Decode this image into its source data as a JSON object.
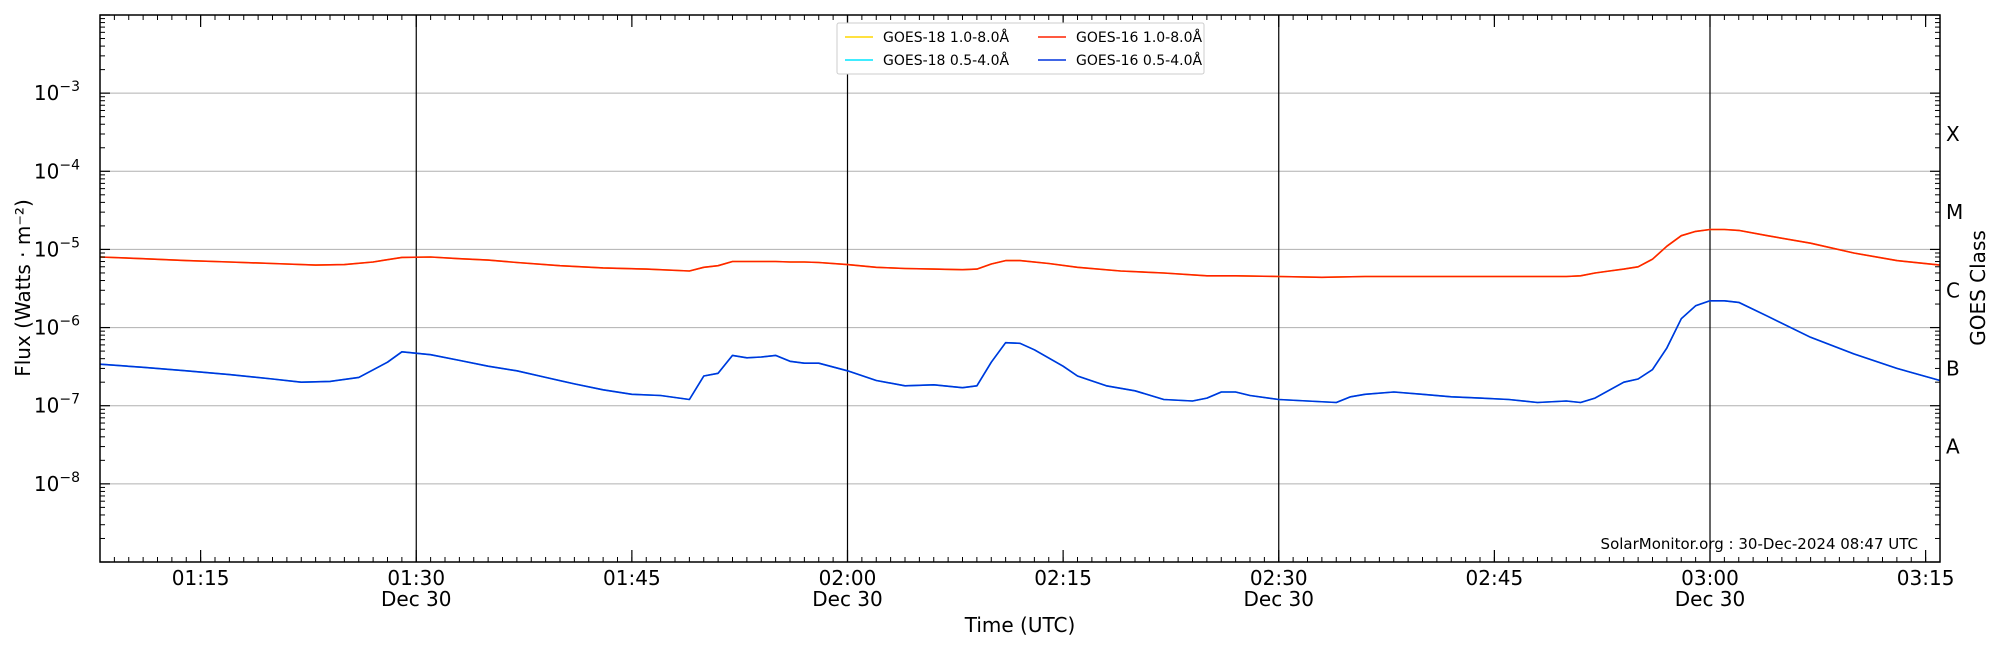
{
  "chart_data": {
    "type": "line",
    "title": "",
    "xlabel": "Time (UTC)",
    "ylabel": "Flux (Watts · m⁻²)",
    "y2label": "GOES Class",
    "yscale": "log",
    "ylim": [
      1e-09,
      0.01
    ],
    "xlim": [
      "01:08",
      "03:16"
    ],
    "grid": "horizontal at decades; vertical at half-hours",
    "legend_position": "top-center",
    "credit": "SolarMonitor.org : 30-Dec-2024 08:47 UTC",
    "x_ticks": [
      {
        "time": "01:15",
        "label": "01:15",
        "date": ""
      },
      {
        "time": "01:30",
        "label": "01:30",
        "date": "Dec 30"
      },
      {
        "time": "01:45",
        "label": "01:45",
        "date": ""
      },
      {
        "time": "02:00",
        "label": "02:00",
        "date": "Dec 30"
      },
      {
        "time": "02:15",
        "label": "02:15",
        "date": ""
      },
      {
        "time": "02:30",
        "label": "02:30",
        "date": "Dec 30"
      },
      {
        "time": "02:45",
        "label": "02:45",
        "date": ""
      },
      {
        "time": "03:00",
        "label": "03:00",
        "date": "Dec 30"
      },
      {
        "time": "03:15",
        "label": "03:15",
        "date": ""
      }
    ],
    "y_ticks": [
      {
        "value": 1e-08,
        "mantissa": "10",
        "exponent": "−8"
      },
      {
        "value": 1e-07,
        "mantissa": "10",
        "exponent": "−7"
      },
      {
        "value": 1e-06,
        "mantissa": "10",
        "exponent": "−6"
      },
      {
        "value": 1e-05,
        "mantissa": "10",
        "exponent": "−5"
      },
      {
        "value": 0.0001,
        "mantissa": "10",
        "exponent": "−4"
      },
      {
        "value": 0.001,
        "mantissa": "10",
        "exponent": "−3"
      }
    ],
    "goes_classes": [
      {
        "label": "X",
        "value": 0.0003
      },
      {
        "label": "M",
        "value": 3e-05
      },
      {
        "label": "C",
        "value": 3e-06
      },
      {
        "label": "B",
        "value": 3e-07
      },
      {
        "label": "A",
        "value": 3e-08
      }
    ],
    "series": [
      {
        "name": "GOES-18 1.0-8.0Å",
        "color": "#ffd700",
        "x": [
          "01:08",
          "01:11",
          "01:14",
          "01:17",
          "01:20",
          "01:23",
          "01:25",
          "01:27",
          "01:29",
          "01:31",
          "01:33",
          "01:35",
          "01:37",
          "01:40",
          "01:43",
          "01:46",
          "01:49",
          "01:50",
          "01:51",
          "01:52",
          "01:53",
          "01:54",
          "01:55",
          "01:56",
          "01:57",
          "01:58",
          "02:00",
          "02:02",
          "02:04",
          "02:06",
          "02:08",
          "02:09",
          "02:10",
          "02:11",
          "02:12",
          "02:14",
          "02:16",
          "02:19",
          "02:22",
          "02:25",
          "02:26",
          "02:27",
          "02:30",
          "02:33",
          "02:36",
          "02:39",
          "02:42",
          "02:45",
          "02:48",
          "02:50",
          "02:51",
          "02:52",
          "02:53",
          "02:54",
          "02:55",
          "02:56",
          "02:57",
          "02:58",
          "02:59",
          "03:00",
          "03:01",
          "03:02",
          "03:04",
          "03:07",
          "03:10",
          "03:13",
          "03:16"
        ],
        "values": [
          8e-06,
          7.6e-06,
          7.2e-06,
          6.9e-06,
          6.6e-06,
          6.3e-06,
          6.4e-06,
          6.9e-06,
          7.9e-06,
          8e-06,
          7.6e-06,
          7.3e-06,
          6.8e-06,
          6.2e-06,
          5.8e-06,
          5.6e-06,
          5.3e-06,
          5.9e-06,
          6.2e-06,
          7e-06,
          7e-06,
          7e-06,
          7e-06,
          6.9e-06,
          6.9e-06,
          6.8e-06,
          6.4e-06,
          5.9e-06,
          5.7e-06,
          5.6e-06,
          5.5e-06,
          5.6e-06,
          6.5e-06,
          7.2e-06,
          7.2e-06,
          6.6e-06,
          5.9e-06,
          5.3e-06,
          5e-06,
          4.6e-06,
          4.6e-06,
          4.6e-06,
          4.5e-06,
          4.4e-06,
          4.5e-06,
          4.5e-06,
          4.5e-06,
          4.5e-06,
          4.5e-06,
          4.5e-06,
          4.6e-06,
          5e-06,
          5.3e-06,
          5.6e-06,
          6e-06,
          7.5e-06,
          1.1e-05,
          1.5e-05,
          1.7e-05,
          1.8e-05,
          1.8e-05,
          1.75e-05,
          1.5e-05,
          1.2e-05,
          9e-06,
          7.2e-06,
          6.3e-06
        ]
      },
      {
        "name": "GOES-18 0.5-4.0Å",
        "color": "#00e5ff",
        "x": [
          "01:08",
          "01:11",
          "01:14",
          "01:17",
          "01:20",
          "01:22",
          "01:24",
          "01:26",
          "01:28",
          "01:29",
          "01:31",
          "01:33",
          "01:35",
          "01:37",
          "01:39",
          "01:41",
          "01:43",
          "01:45",
          "01:47",
          "01:49",
          "01:50",
          "01:51",
          "01:52",
          "01:53",
          "01:54",
          "01:55",
          "01:56",
          "01:57",
          "01:58",
          "02:00",
          "02:02",
          "02:04",
          "02:06",
          "02:08",
          "02:09",
          "02:10",
          "02:11",
          "02:12",
          "02:13",
          "02:15",
          "02:16",
          "02:18",
          "02:20",
          "02:22",
          "02:24",
          "02:25",
          "02:26",
          "02:27",
          "02:28",
          "02:30",
          "02:32",
          "02:34",
          "02:35",
          "02:36",
          "02:38",
          "02:40",
          "02:42",
          "02:44",
          "02:46",
          "02:48",
          "02:50",
          "02:51",
          "02:52",
          "02:54",
          "02:55",
          "02:56",
          "02:57",
          "02:58",
          "02:59",
          "03:00",
          "03:01",
          "03:02",
          "03:04",
          "03:07",
          "03:10",
          "03:13",
          "03:16"
        ],
        "values": [
          3.4e-07,
          3.1e-07,
          2.8e-07,
          2.5e-07,
          2.2e-07,
          2e-07,
          2.05e-07,
          2.3e-07,
          3.6e-07,
          4.9e-07,
          4.5e-07,
          3.8e-07,
          3.2e-07,
          2.8e-07,
          2.3e-07,
          1.9e-07,
          1.6e-07,
          1.4e-07,
          1.35e-07,
          1.2e-07,
          2.4e-07,
          2.6e-07,
          4.4e-07,
          4.1e-07,
          4.2e-07,
          4.4e-07,
          3.7e-07,
          3.5e-07,
          3.5e-07,
          2.8e-07,
          2.1e-07,
          1.8e-07,
          1.85e-07,
          1.7e-07,
          1.8e-07,
          3.6e-07,
          6.4e-07,
          6.3e-07,
          5.2e-07,
          3.2e-07,
          2.4e-07,
          1.8e-07,
          1.55e-07,
          1.2e-07,
          1.15e-07,
          1.25e-07,
          1.5e-07,
          1.5e-07,
          1.35e-07,
          1.2e-07,
          1.15e-07,
          1.1e-07,
          1.3e-07,
          1.4e-07,
          1.5e-07,
          1.4e-07,
          1.3e-07,
          1.25e-07,
          1.2e-07,
          1.1e-07,
          1.15e-07,
          1.1e-07,
          1.25e-07,
          2e-07,
          2.2e-07,
          2.9e-07,
          5.5e-07,
          1.3e-06,
          1.9e-06,
          2.2e-06,
          2.2e-06,
          2.1e-06,
          1.4e-06,
          7.5e-07,
          4.6e-07,
          3e-07,
          2.1e-07
        ]
      },
      {
        "name": "GOES-16 1.0-8.0Å",
        "color": "#ff2200",
        "x": [
          "01:08",
          "01:11",
          "01:14",
          "01:17",
          "01:20",
          "01:23",
          "01:25",
          "01:27",
          "01:29",
          "01:31",
          "01:33",
          "01:35",
          "01:37",
          "01:40",
          "01:43",
          "01:46",
          "01:49",
          "01:50",
          "01:51",
          "01:52",
          "01:53",
          "01:54",
          "01:55",
          "01:56",
          "01:57",
          "01:58",
          "02:00",
          "02:02",
          "02:04",
          "02:06",
          "02:08",
          "02:09",
          "02:10",
          "02:11",
          "02:12",
          "02:14",
          "02:16",
          "02:19",
          "02:22",
          "02:25",
          "02:26",
          "02:27",
          "02:30",
          "02:33",
          "02:36",
          "02:39",
          "02:42",
          "02:45",
          "02:48",
          "02:50",
          "02:51",
          "02:52",
          "02:53",
          "02:54",
          "02:55",
          "02:56",
          "02:57",
          "02:58",
          "02:59",
          "03:00",
          "03:01",
          "03:02",
          "03:04",
          "03:07",
          "03:10",
          "03:13",
          "03:16"
        ],
        "values": [
          8e-06,
          7.6e-06,
          7.2e-06,
          6.9e-06,
          6.6e-06,
          6.3e-06,
          6.4e-06,
          6.9e-06,
          7.9e-06,
          8e-06,
          7.6e-06,
          7.3e-06,
          6.8e-06,
          6.2e-06,
          5.8e-06,
          5.6e-06,
          5.3e-06,
          5.9e-06,
          6.2e-06,
          7e-06,
          7e-06,
          7e-06,
          7e-06,
          6.9e-06,
          6.9e-06,
          6.8e-06,
          6.4e-06,
          5.9e-06,
          5.7e-06,
          5.6e-06,
          5.5e-06,
          5.6e-06,
          6.5e-06,
          7.2e-06,
          7.2e-06,
          6.6e-06,
          5.9e-06,
          5.3e-06,
          5e-06,
          4.6e-06,
          4.6e-06,
          4.6e-06,
          4.5e-06,
          4.4e-06,
          4.5e-06,
          4.5e-06,
          4.5e-06,
          4.5e-06,
          4.5e-06,
          4.5e-06,
          4.6e-06,
          5e-06,
          5.3e-06,
          5.6e-06,
          6e-06,
          7.5e-06,
          1.1e-05,
          1.5e-05,
          1.7e-05,
          1.8e-05,
          1.8e-05,
          1.75e-05,
          1.5e-05,
          1.2e-05,
          9e-06,
          7.2e-06,
          6.3e-06
        ]
      },
      {
        "name": "GOES-16 0.5-4.0Å",
        "color": "#0033dd",
        "x": [
          "01:08",
          "01:11",
          "01:14",
          "01:17",
          "01:20",
          "01:22",
          "01:24",
          "01:26",
          "01:28",
          "01:29",
          "01:31",
          "01:33",
          "01:35",
          "01:37",
          "01:39",
          "01:41",
          "01:43",
          "01:45",
          "01:47",
          "01:49",
          "01:50",
          "01:51",
          "01:52",
          "01:53",
          "01:54",
          "01:55",
          "01:56",
          "01:57",
          "01:58",
          "02:00",
          "02:02",
          "02:04",
          "02:06",
          "02:08",
          "02:09",
          "02:10",
          "02:11",
          "02:12",
          "02:13",
          "02:15",
          "02:16",
          "02:18",
          "02:20",
          "02:22",
          "02:24",
          "02:25",
          "02:26",
          "02:27",
          "02:28",
          "02:30",
          "02:32",
          "02:34",
          "02:35",
          "02:36",
          "02:38",
          "02:40",
          "02:42",
          "02:44",
          "02:46",
          "02:48",
          "02:50",
          "02:51",
          "02:52",
          "02:54",
          "02:55",
          "02:56",
          "02:57",
          "02:58",
          "02:59",
          "03:00",
          "03:01",
          "03:02",
          "03:04",
          "03:07",
          "03:10",
          "03:13",
          "03:16"
        ],
        "values": [
          3.4e-07,
          3.1e-07,
          2.8e-07,
          2.5e-07,
          2.2e-07,
          2e-07,
          2.05e-07,
          2.3e-07,
          3.6e-07,
          4.9e-07,
          4.5e-07,
          3.8e-07,
          3.2e-07,
          2.8e-07,
          2.3e-07,
          1.9e-07,
          1.6e-07,
          1.4e-07,
          1.35e-07,
          1.2e-07,
          2.4e-07,
          2.6e-07,
          4.4e-07,
          4.1e-07,
          4.2e-07,
          4.4e-07,
          3.7e-07,
          3.5e-07,
          3.5e-07,
          2.8e-07,
          2.1e-07,
          1.8e-07,
          1.85e-07,
          1.7e-07,
          1.8e-07,
          3.6e-07,
          6.4e-07,
          6.3e-07,
          5.2e-07,
          3.2e-07,
          2.4e-07,
          1.8e-07,
          1.55e-07,
          1.2e-07,
          1.15e-07,
          1.25e-07,
          1.5e-07,
          1.5e-07,
          1.35e-07,
          1.2e-07,
          1.15e-07,
          1.1e-07,
          1.3e-07,
          1.4e-07,
          1.5e-07,
          1.4e-07,
          1.3e-07,
          1.25e-07,
          1.2e-07,
          1.1e-07,
          1.15e-07,
          1.1e-07,
          1.25e-07,
          2e-07,
          2.2e-07,
          2.9e-07,
          5.5e-07,
          1.3e-06,
          1.9e-06,
          2.2e-06,
          2.2e-06,
          2.1e-06,
          1.4e-06,
          7.5e-07,
          4.6e-07,
          3e-07,
          2.1e-07
        ]
      }
    ],
    "legend_order": [
      0,
      1,
      2,
      3
    ]
  }
}
